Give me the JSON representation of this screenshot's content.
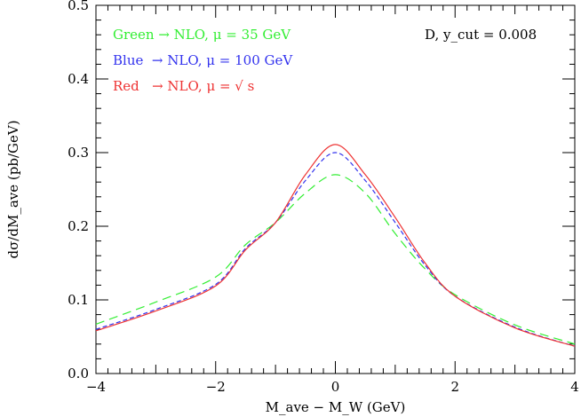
{
  "chart_data": {
    "type": "line",
    "xlabel": "M_ave − M_W (GeV)",
    "ylabel": "dσ/dM_ave (pb/GeV)",
    "xlim": [
      -4,
      4
    ],
    "ylim": [
      0,
      0.5
    ],
    "xticks": [
      "−4",
      "−2",
      "0",
      "2",
      "4"
    ],
    "yticks": [
      "0.0",
      "0.1",
      "0.2",
      "0.3",
      "0.4",
      "0.5"
    ],
    "grid": false,
    "annotation": "D, y_cut = 0.008",
    "legend": [
      {
        "text": "Green → NLO, μ = 35 GeV",
        "color": "#33ee33"
      },
      {
        "text": "Blue  → NLO, μ = 100 GeV",
        "color": "#3333ee"
      },
      {
        "text": "Red   → NLO, μ = √ s",
        "color": "#ee3333"
      }
    ],
    "x": [
      -4,
      -3,
      -2,
      -1.5,
      -1,
      -0.5,
      0,
      0.5,
      1,
      1.5,
      2,
      3,
      4
    ],
    "series": [
      {
        "color": "#33ee33",
        "style": "long-dash",
        "values": [
          0.067,
          0.097,
          0.131,
          0.175,
          0.205,
          0.245,
          0.27,
          0.245,
          0.19,
          0.142,
          0.107,
          0.066,
          0.04
        ]
      },
      {
        "color": "#3333ee",
        "style": "short-dash",
        "values": [
          0.06,
          0.087,
          0.121,
          0.17,
          0.205,
          0.262,
          0.3,
          0.262,
          0.205,
          0.147,
          0.105,
          0.063,
          0.037
        ]
      },
      {
        "color": "#ee3333",
        "style": "solid",
        "values": [
          0.058,
          0.085,
          0.119,
          0.168,
          0.205,
          0.27,
          0.311,
          0.27,
          0.212,
          0.15,
          0.105,
          0.062,
          0.037
        ]
      }
    ]
  }
}
